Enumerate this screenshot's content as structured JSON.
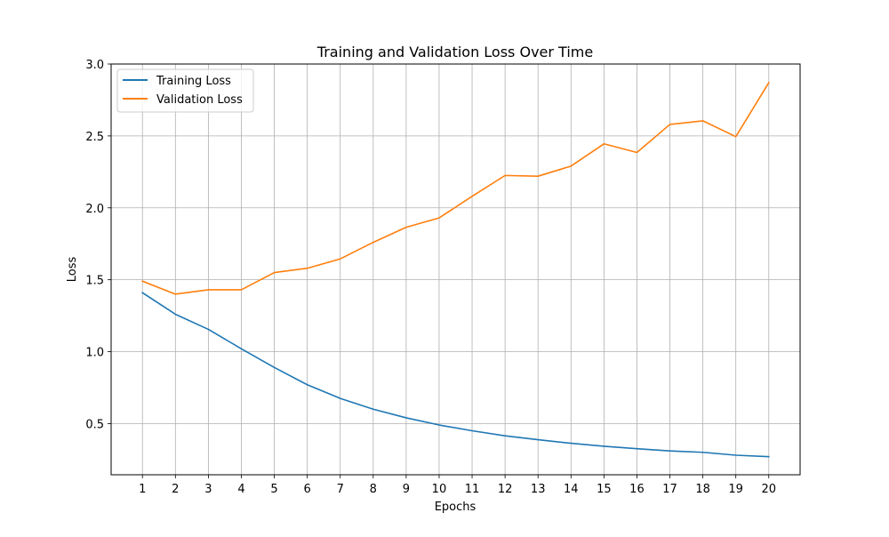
{
  "chart_data": {
    "type": "line",
    "title": "Training and Validation Loss Over Time",
    "xlabel": "Epochs",
    "ylabel": "Loss",
    "x": [
      1,
      2,
      3,
      4,
      5,
      6,
      7,
      8,
      9,
      10,
      11,
      12,
      13,
      14,
      15,
      16,
      17,
      18,
      19,
      20
    ],
    "xlim": [
      0.05,
      20.95
    ],
    "ylim": [
      0.144,
      3.0
    ],
    "yticks": [
      0.5,
      1.0,
      1.5,
      2.0,
      2.5,
      3.0
    ],
    "grid": true,
    "legend_position": "upper-left",
    "series": [
      {
        "name": "Training Loss",
        "color": "#1f77b4",
        "values": [
          1.41,
          1.26,
          1.155,
          1.02,
          0.89,
          0.77,
          0.675,
          0.6,
          0.54,
          0.49,
          0.45,
          0.415,
          0.388,
          0.363,
          0.342,
          0.325,
          0.31,
          0.3,
          0.28,
          0.27
        ]
      },
      {
        "name": "Validation Loss",
        "color": "#ff7f0e",
        "values": [
          1.49,
          1.4,
          1.43,
          1.43,
          1.55,
          1.58,
          1.645,
          1.76,
          1.865,
          1.93,
          2.08,
          2.225,
          2.22,
          2.29,
          2.445,
          2.385,
          2.58,
          2.605,
          2.495,
          2.87
        ]
      }
    ]
  }
}
